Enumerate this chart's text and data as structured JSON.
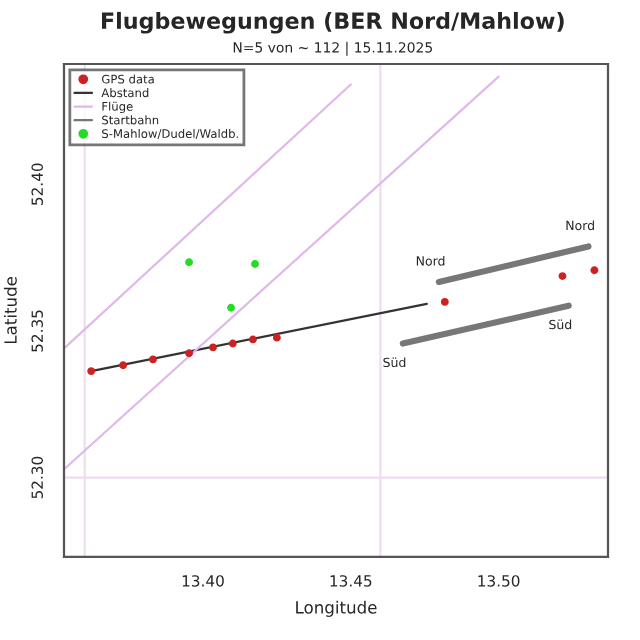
{
  "chart_data": {
    "type": "scatter",
    "title": "Flugbewegungen (BER Nord/Mahlow)",
    "subtitle": "N=5 von ~ 112 | 15.11.2025",
    "xlabel": "Longitude",
    "ylabel": "Latitude",
    "xlim": [
      13.353,
      13.537
    ],
    "ylim": [
      52.273,
      52.441
    ],
    "xticks": [
      {
        "value": 13.4,
        "label": "13.40"
      },
      {
        "value": 13.45,
        "label": "13.45"
      },
      {
        "value": 13.5,
        "label": "13.50"
      }
    ],
    "yticks": [
      {
        "value": 52.3,
        "label": "52.30"
      },
      {
        "value": 52.35,
        "label": "52.35"
      },
      {
        "value": 52.4,
        "label": "52.40"
      }
    ],
    "series": [
      {
        "name": "GPS data",
        "color": "#cc2222",
        "x": [
          13.3622,
          13.373,
          13.3831,
          13.3953,
          13.4034,
          13.4101,
          13.4169,
          13.425,
          13.4818,
          13.5216,
          13.5324
        ],
        "values": [
          52.3363,
          52.3383,
          52.3403,
          52.3424,
          52.3444,
          52.3457,
          52.3471,
          52.3477,
          52.3599,
          52.3687,
          52.3707
        ]
      },
      {
        "name": "Abstand",
        "type": "line",
        "color": "#333333",
        "x": [
          13.3622,
          13.4757
        ],
        "values": [
          52.3363,
          52.3592
        ]
      },
      {
        "name": "Flüge",
        "type": "line",
        "color": "#e0b8ec",
        "x": [
          13.3534,
          13.45,
          null,
          13.3534,
          13.5
        ],
        "values": [
          52.3444,
          52.434,
          null,
          52.3032,
          52.4367
        ]
      },
      {
        "name": "Startbahn",
        "type": "line",
        "color": "#777777",
        "x": [
          13.4798,
          13.5304,
          null,
          13.4676,
          13.5237
        ],
        "values": [
          52.3667,
          52.3788,
          null,
          52.3457,
          52.3586
        ]
      },
      {
        "name": "S-Mahlow/Dudel/Waldb.",
        "color": "#22dd22",
        "x": [
          13.3953,
          13.4176,
          13.4095
        ],
        "values": [
          52.3734,
          52.3728,
          52.3579
        ]
      }
    ],
    "annotations": [
      {
        "text": "Nord",
        "x": 13.4798,
        "y": 52.3667
      },
      {
        "text": "Nord",
        "x": 13.5304,
        "y": 52.3788
      },
      {
        "text": "Süd",
        "x": 13.4676,
        "y": 52.3457
      },
      {
        "text": "Süd",
        "x": 13.5237,
        "y": 52.3586
      }
    ],
    "ref_lines": [
      {
        "axis": "x",
        "value": 13.36,
        "color": "#eeddee"
      },
      {
        "axis": "x",
        "value": 13.46,
        "color": "#eeddee"
      },
      {
        "axis": "y",
        "value": 52.3,
        "color": "#eeddee"
      }
    ],
    "legend": "top left",
    "grid": false
  }
}
